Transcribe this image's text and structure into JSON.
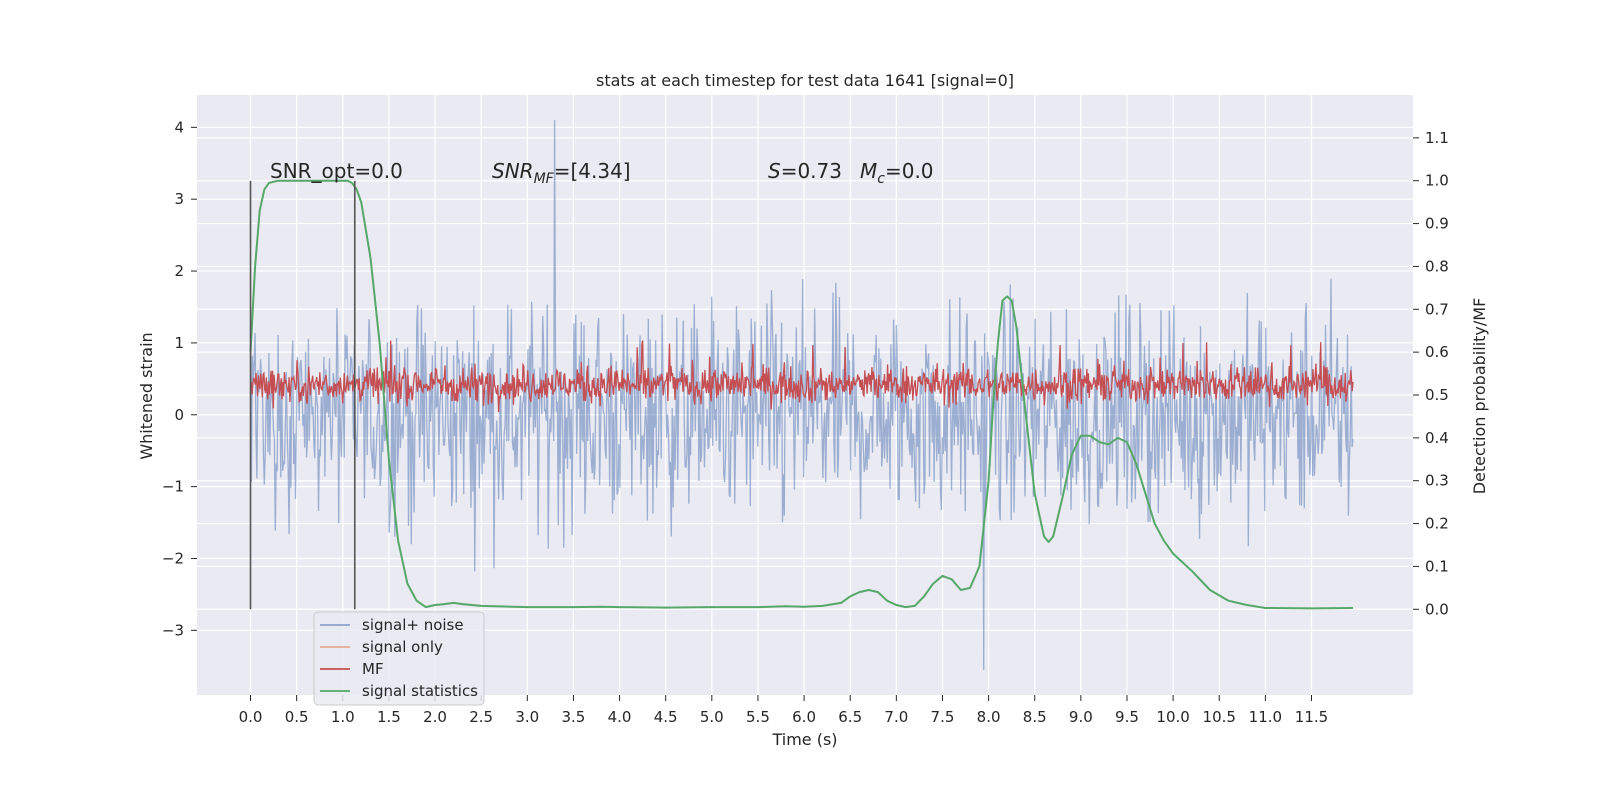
{
  "chart_data": {
    "type": "line",
    "title": "stats at each timestep for test data 1641 [signal=0]",
    "xlabel": "Time (s)",
    "ylabel_left": "Whitened strain",
    "ylabel_right": "Detection probability/MF",
    "xlim": [
      -0.58,
      12.6
    ],
    "ylim_left": [
      -3.9,
      4.45
    ],
    "ylim_right": [
      -0.2,
      1.2
    ],
    "x_ticks": [
      "0.0",
      "0.5",
      "1.0",
      "1.5",
      "2.0",
      "2.5",
      "3.0",
      "3.5",
      "4.0",
      "4.5",
      "5.0",
      "5.5",
      "6.0",
      "6.5",
      "7.0",
      "7.5",
      "8.0",
      "8.5",
      "9.0",
      "9.5",
      "10.0",
      "10.5",
      "11.0",
      "11.5"
    ],
    "y_left_ticks": [
      "4",
      "3",
      "2",
      "1",
      "0",
      "−1",
      "−2",
      "−3"
    ],
    "y_right_ticks": [
      "1.1",
      "1.0",
      "0.9",
      "0.8",
      "0.7",
      "0.6",
      "0.5",
      "0.4",
      "0.3",
      "0.2",
      "0.1",
      "0.0"
    ],
    "grid": true,
    "legend_position": "lower-left",
    "background_color": "#eaeaf2",
    "annotations": {
      "snr_opt": "SNR_opt=0.0",
      "snr_mf_main": "SNR",
      "snr_mf_sub": "MF",
      "snr_mf_tail": "=[4.34]",
      "s_label": "S",
      "s_value": "=0.73",
      "mc_label": "M",
      "mc_sub": "c",
      "mc_value": "=0.0"
    },
    "vertical_lines": [
      0.0,
      1.13
    ],
    "series": [
      {
        "name": "signal+ noise",
        "color": "#4c72b0",
        "alpha": 0.5,
        "axis": "left",
        "kind": "noise",
        "range": [
          -2.5,
          2.5
        ],
        "peak_max": 4.1,
        "peak_min": -3.55
      },
      {
        "name": "signal only",
        "color": "#dd8452",
        "alpha": 0.6,
        "axis": "left",
        "kind": "flat",
        "values": []
      },
      {
        "name": "MF",
        "color": "#c44e52",
        "axis": "right",
        "kind": "mf",
        "range": [
          0.46,
          0.62
        ],
        "peak_max": 0.63
      },
      {
        "name": "signal statistics",
        "color": "#55a868",
        "axis": "right",
        "kind": "line",
        "x": [
          0.0,
          0.05,
          0.1,
          0.15,
          0.2,
          0.3,
          0.5,
          0.7,
          0.9,
          1.0,
          1.05,
          1.1,
          1.15,
          1.2,
          1.3,
          1.4,
          1.5,
          1.6,
          1.7,
          1.8,
          1.9,
          2.0,
          2.1,
          2.2,
          2.3,
          2.5,
          3.0,
          3.5,
          3.8,
          4.0,
          4.5,
          5.0,
          5.5,
          5.8,
          6.0,
          6.2,
          6.4,
          6.5,
          6.6,
          6.7,
          6.8,
          6.9,
          7.0,
          7.1,
          7.2,
          7.3,
          7.4,
          7.5,
          7.6,
          7.7,
          7.8,
          7.9,
          8.0,
          8.05,
          8.1,
          8.15,
          8.2,
          8.25,
          8.3,
          8.4,
          8.5,
          8.6,
          8.65,
          8.7,
          8.8,
          8.9,
          9.0,
          9.1,
          9.2,
          9.3,
          9.4,
          9.5,
          9.6,
          9.7,
          9.8,
          9.9,
          10.0,
          10.2,
          10.4,
          10.6,
          10.8,
          11.0,
          11.5,
          11.95
        ],
        "y": [
          0.6,
          0.8,
          0.93,
          0.98,
          0.995,
          1.0,
          1.0,
          1.0,
          1.0,
          1.0,
          1.0,
          0.995,
          0.98,
          0.95,
          0.82,
          0.62,
          0.35,
          0.16,
          0.06,
          0.02,
          0.005,
          0.01,
          0.012,
          0.015,
          0.012,
          0.008,
          0.005,
          0.005,
          0.006,
          0.005,
          0.004,
          0.005,
          0.005,
          0.007,
          0.006,
          0.008,
          0.015,
          0.03,
          0.04,
          0.045,
          0.04,
          0.02,
          0.01,
          0.005,
          0.008,
          0.03,
          0.06,
          0.078,
          0.07,
          0.045,
          0.05,
          0.1,
          0.3,
          0.48,
          0.62,
          0.72,
          0.73,
          0.72,
          0.66,
          0.46,
          0.27,
          0.17,
          0.157,
          0.17,
          0.26,
          0.36,
          0.405,
          0.405,
          0.39,
          0.385,
          0.4,
          0.39,
          0.34,
          0.27,
          0.2,
          0.16,
          0.13,
          0.09,
          0.045,
          0.02,
          0.01,
          0.003,
          0.002,
          0.003
        ]
      }
    ]
  }
}
